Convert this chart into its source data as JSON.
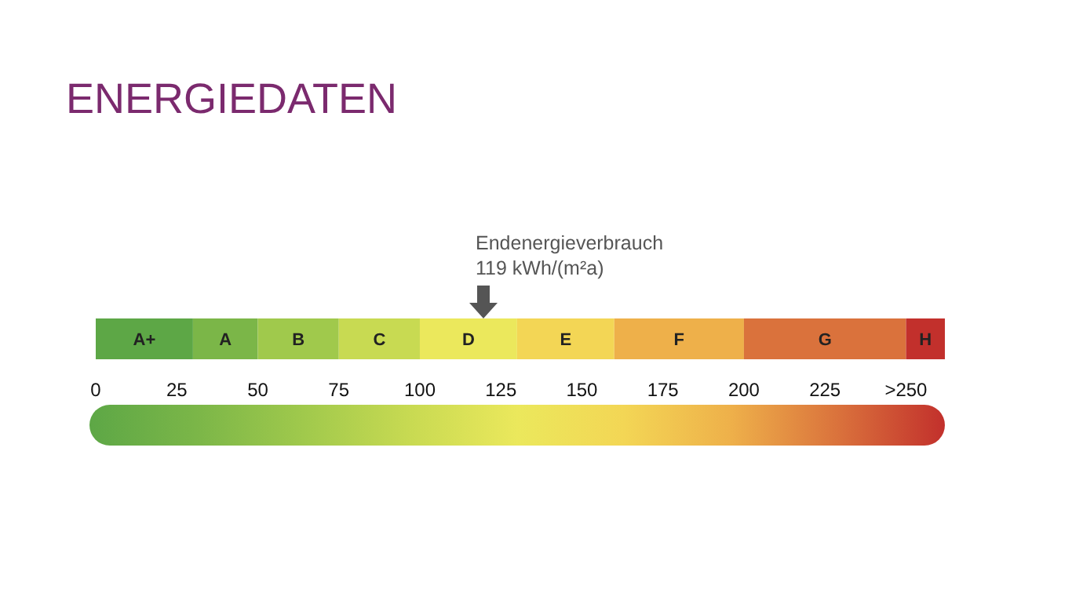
{
  "chart_data": {
    "type": "bar",
    "title": "ENERGIEDATEN",
    "orientation": "horizontal",
    "stacked": true,
    "categories": [
      null
    ],
    "series": [
      {
        "name": "A+",
        "color": "#5da746",
        "values": [
          30
        ]
      },
      {
        "name": "A",
        "color": "#7bb648",
        "values": [
          20
        ]
      },
      {
        "name": "B",
        "color": "#a0c94c",
        "values": [
          25
        ]
      },
      {
        "name": "C",
        "color": "#c8da52",
        "values": [
          25
        ]
      },
      {
        "name": "D",
        "color": "#ebe85c",
        "values": [
          30
        ]
      },
      {
        "name": "E",
        "color": "#f3d655",
        "values": [
          30
        ]
      },
      {
        "name": "F",
        "color": "#eeb04a",
        "values": [
          40
        ]
      },
      {
        "name": "G",
        "color": "#da723c",
        "values": [
          50
        ]
      },
      {
        "name": "H",
        "color": "#c2302c",
        "values": [
          12
        ]
      }
    ],
    "xlim": [
      0,
      262
    ],
    "xticks": [
      0,
      25,
      50,
      75,
      100,
      125,
      150,
      175,
      200,
      225,
      {
        "value": 250,
        "label": ">250"
      }
    ],
    "annotations": [
      "Endenergieverbrauch\n119 kWh/(m²a)"
    ]
  }
}
